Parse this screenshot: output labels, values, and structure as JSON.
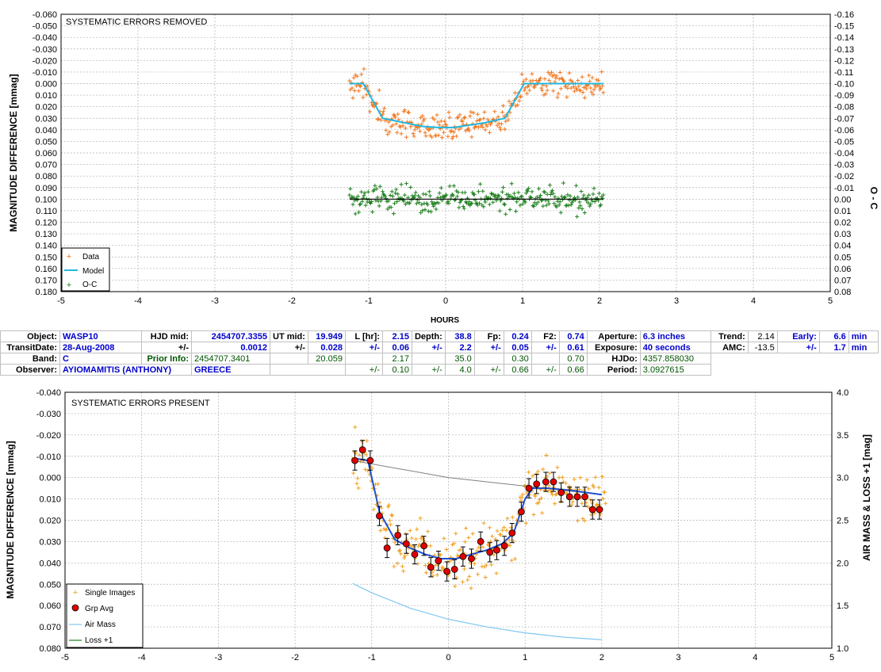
{
  "chart_data": [
    {
      "type": "scatter",
      "title": "SYSTEMATIC ERRORS REMOVED",
      "xlabel": "HOURS",
      "ylabel": "MAGNITUDE DIFFERENCE [mmag]",
      "y2label": "O - C",
      "xlim": [
        -5,
        5
      ],
      "ylim": [
        -0.06,
        0.18
      ],
      "y_inverted": true,
      "y2lim": [
        -0.16,
        0.08
      ],
      "x_ticks": [
        "-5",
        "-4",
        "-3",
        "-2",
        "-1",
        "0",
        "1",
        "2",
        "3",
        "4",
        "5"
      ],
      "y_ticks": [
        "-0.060",
        "-0.050",
        "-0.040",
        "-0.030",
        "-0.020",
        "-0.010",
        "0.000",
        "0.010",
        "0.020",
        "0.030",
        "0.040",
        "0.050",
        "0.060",
        "0.070",
        "0.080",
        "0.090",
        "0.100",
        "0.110",
        "0.120",
        "0.130",
        "0.140",
        "0.150",
        "0.160",
        "0.170",
        "0.180"
      ],
      "y2_ticks": [
        "-0.16",
        "-0.15",
        "-0.14",
        "-0.13",
        "-0.12",
        "-0.11",
        "-0.10",
        "-0.09",
        "-0.08",
        "-0.07",
        "-0.06",
        "-0.05",
        "-0.04",
        "-0.03",
        "-0.02",
        "-0.01",
        "0.00",
        "0.01",
        "0.02",
        "0.03",
        "0.04",
        "0.05",
        "0.06",
        "0.07",
        "0.08"
      ],
      "grid": true,
      "legend": [
        "Data",
        "Model",
        "O-C"
      ],
      "legend_placement": "bottom-left",
      "colors": {
        "data": "#f07820",
        "model": "#20b8e0",
        "oc": "#208020",
        "oc_line": "#000000"
      },
      "series": [
        {
          "name": "Model",
          "x": [
            -1.25,
            -1.07,
            -0.82,
            -0.6,
            -0.3,
            -0.1,
            0.1,
            0.3,
            0.5,
            0.77,
            1.02,
            1.2,
            2.05
          ],
          "y": [
            0.0,
            0.0,
            0.03,
            0.033,
            0.037,
            0.038,
            0.038,
            0.036,
            0.034,
            0.03,
            0.0,
            0.0,
            0.0
          ]
        },
        {
          "name": "O-C",
          "x": [
            -1.25,
            2.05
          ],
          "y": [
            0.0,
            0.0
          ],
          "axis": "secondary"
        }
      ],
      "scatter_shape": {
        "data_points_x_range": [
          -1.25,
          2.05
        ],
        "oc_points_x_range": [
          -1.25,
          2.05
        ],
        "data_scatter_mmag": 0.009,
        "oc_scatter": 0.009
      }
    },
    {
      "type": "scatter",
      "title": "SYSTEMATIC ERRORS PRESENT",
      "ylabel": "MAGNITUDE DIFFERENCE [mmag]",
      "y2label": "AIR MASS & LOSS +1 [mag]",
      "xlim": [
        -5,
        5
      ],
      "ylim": [
        -0.04,
        0.08
      ],
      "y_inverted": true,
      "y2lim": [
        1.0,
        4.0
      ],
      "x_ticks": [
        "-5",
        "-4",
        "-3",
        "-2",
        "-1",
        "0",
        "1",
        "2",
        "3",
        "4",
        "5"
      ],
      "y_ticks": [
        "-0.040",
        "-0.030",
        "-0.020",
        "-0.010",
        "0.000",
        "0.010",
        "0.020",
        "0.030",
        "0.040",
        "0.050",
        "0.060",
        "0.070",
        "0.080"
      ],
      "y2_ticks": [
        "1.0",
        "1.5",
        "2.0",
        "2.5",
        "3.0",
        "3.5",
        "4.0"
      ],
      "grid": true,
      "legend": [
        "Single Images",
        "Grp Avg",
        "Air Mass",
        "Loss +1"
      ],
      "legend_placement": "bottom-left",
      "colors": {
        "single": "#f0a020",
        "grp": "#e00000",
        "model": "#2050d0",
        "airmass": "#80c8f0",
        "loss": "#208020",
        "trend": "#808080"
      },
      "series": [
        {
          "name": "Grp Avg",
          "x": [
            -1.22,
            -1.12,
            -1.02,
            -0.9,
            -0.8,
            -0.66,
            -0.55,
            -0.44,
            -0.32,
            -0.23,
            -0.13,
            -0.02,
            0.08,
            0.19,
            0.3,
            0.42,
            0.54,
            0.63,
            0.73,
            0.83,
            0.95,
            1.05,
            1.15,
            1.27,
            1.37,
            1.47,
            1.58,
            1.68,
            1.78,
            1.88,
            1.97
          ],
          "y": [
            -0.008,
            -0.013,
            -0.008,
            0.018,
            0.033,
            0.027,
            0.031,
            0.036,
            0.032,
            0.042,
            0.039,
            0.044,
            0.043,
            0.037,
            0.038,
            0.03,
            0.035,
            0.034,
            0.032,
            0.026,
            0.016,
            0.005,
            0.003,
            0.002,
            0.002,
            0.007,
            0.009,
            0.009,
            0.009,
            0.015,
            0.015
          ],
          "err": 0.0045
        },
        {
          "name": "Model",
          "x": [
            -1.22,
            -1.05,
            -0.9,
            -0.7,
            -0.5,
            -0.3,
            -0.1,
            0.1,
            0.3,
            0.5,
            0.7,
            0.85,
            1.0,
            1.1,
            1.3,
            1.6,
            2.0
          ],
          "y": [
            -0.009,
            -0.008,
            0.016,
            0.029,
            0.033,
            0.036,
            0.038,
            0.038,
            0.036,
            0.034,
            0.031,
            0.026,
            0.01,
            0.005,
            0.005,
            0.006,
            0.008
          ]
        },
        {
          "name": "Trend",
          "x": [
            -1.25,
            0.0,
            1.0,
            2.0
          ],
          "y": [
            -0.008,
            0.0,
            0.004,
            0.008
          ]
        },
        {
          "name": "Air Mass",
          "x": [
            -1.25,
            -1.0,
            -0.5,
            0.0,
            0.5,
            1.0,
            1.5,
            2.0
          ],
          "y": [
            1.76,
            1.65,
            1.47,
            1.34,
            1.25,
            1.18,
            1.13,
            1.1
          ],
          "axis": "secondary"
        }
      ]
    }
  ],
  "info": {
    "row1": {
      "object_label": "Object:",
      "object": "WASP10",
      "hjd_mid_label": "HJD mid:",
      "hjd_mid": "2454707.3355",
      "ut_mid_label": "UT mid:",
      "ut_mid": "19.949",
      "l_hr_label": "L [hr]:",
      "l_hr": "2.15",
      "depth_label": "Depth:",
      "depth": "38.8",
      "fp_label": "Fp:",
      "fp": "0.24",
      "f2_label": "F2:",
      "f2": "0.74",
      "aperture_label": "Aperture:",
      "aperture": "6.3 inches",
      "trend_label": "Trend:",
      "trend": "2.14",
      "early_label": "Early:",
      "early": "6.6",
      "early_unit": "min"
    },
    "row2": {
      "transit_label": "TransitDate:",
      "transit_date": "28-Aug-2008",
      "pm1": "+/-",
      "hjd_err": "0.0012",
      "pm2": "+/-",
      "ut_err": "0.028",
      "pm3": "+/-",
      "l_err": "0.06",
      "pm4": "+/-",
      "depth_err": "2.2",
      "pm5": "+/-",
      "fp_err": "0.05",
      "pm6": "+/-",
      "f2_err": "0.61",
      "exposure_label": "Exposure:",
      "exposure": "40 seconds",
      "amc_label": "AMC:",
      "amc": "-13.5",
      "pm7": "+/-",
      "early_err": "1.7",
      "early_err_unit": "min"
    },
    "row3": {
      "band_label": "Band:",
      "band": "C",
      "prior_label": "Prior Info:",
      "prior_hjd": "2454707.3401",
      "prior_ut": "20.059",
      "prior_l": "2.17",
      "prior_depth": "35.0",
      "prior_fp": "0.30",
      "prior_f2": "0.70",
      "hjdo_label": "HJDo:",
      "hjdo": "4357.858030"
    },
    "row4": {
      "observer_label": "Observer:",
      "observer": "AYIOMAMITIS (ANTHONY)",
      "location": "GREECE",
      "pm1": "+/-",
      "l_err": "0.10",
      "pm2": "+/-",
      "depth_err": "4.0",
      "pm3": "+/-",
      "fp_err": "0.66",
      "pm4": "+/-",
      "f2_err": "0.66",
      "period_label": "Period:",
      "period": "3.0927615"
    }
  }
}
